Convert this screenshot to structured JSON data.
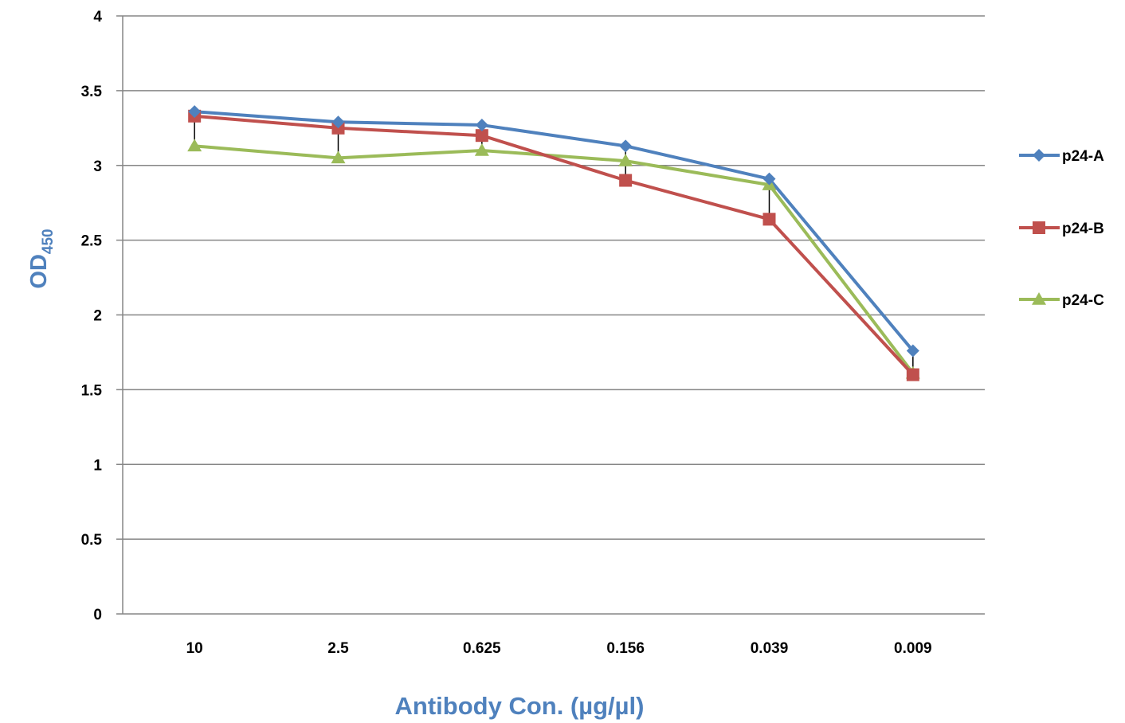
{
  "chart_data": {
    "type": "line",
    "categories": [
      "10",
      "2.5",
      "0.625",
      "0.156",
      "0.039",
      "0.009"
    ],
    "series": [
      {
        "name": "p24-A",
        "color": "#4F81BD",
        "marker": "diamond",
        "values": [
          3.36,
          3.29,
          3.27,
          3.13,
          2.91,
          1.76
        ]
      },
      {
        "name": "p24-B",
        "color": "#C0504D",
        "marker": "square",
        "values": [
          3.33,
          3.25,
          3.2,
          2.9,
          2.64,
          1.6
        ]
      },
      {
        "name": "p24-C",
        "color": "#9BBB59",
        "marker": "triangle",
        "values": [
          3.13,
          3.05,
          3.1,
          3.03,
          2.87,
          1.61
        ]
      }
    ],
    "error_bars": [
      {
        "category": "10",
        "low": 3.13,
        "high": 3.36
      },
      {
        "category": "2.5",
        "low": 3.05,
        "high": 3.29
      },
      {
        "category": "0.625",
        "low": 3.1,
        "high": 3.27
      },
      {
        "category": "0.156",
        "low": 2.9,
        "high": 3.13
      },
      {
        "category": "0.039",
        "low": 2.64,
        "high": 2.91
      },
      {
        "category": "0.009",
        "low": 1.6,
        "high": 1.76
      }
    ],
    "error_bar_color": "#000000",
    "y_ticks": [
      "0",
      "0.5",
      "1",
      "1.5",
      "2",
      "2.5",
      "3",
      "3.5",
      "4"
    ],
    "ylim": [
      0,
      4
    ],
    "xlabel": "Antibody Con. (µg/µl)",
    "ylabel_main": "OD",
    "ylabel_sub": "450",
    "title": "",
    "grid": true,
    "gridline_color": "#868686",
    "axis_title_color": "#4F81BD",
    "legend_position": "right"
  }
}
